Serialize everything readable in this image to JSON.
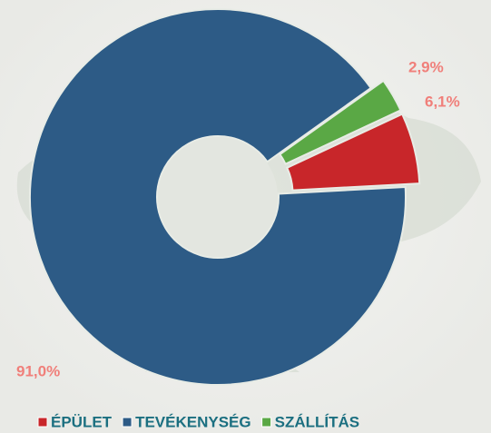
{
  "chart_data": {
    "type": "donut",
    "categories": [
      "ÉPÜLET",
      "TEVÉKENYSÉG",
      "SZÁLLÍTÁS"
    ],
    "values": [
      6.1,
      91.0,
      2.9
    ],
    "value_labels": [
      "6,1%",
      "91,0%",
      "2,9%"
    ],
    "colors": [
      "#c8262a",
      "#2d5b86",
      "#5aa845"
    ],
    "legend": "bottom"
  }
}
